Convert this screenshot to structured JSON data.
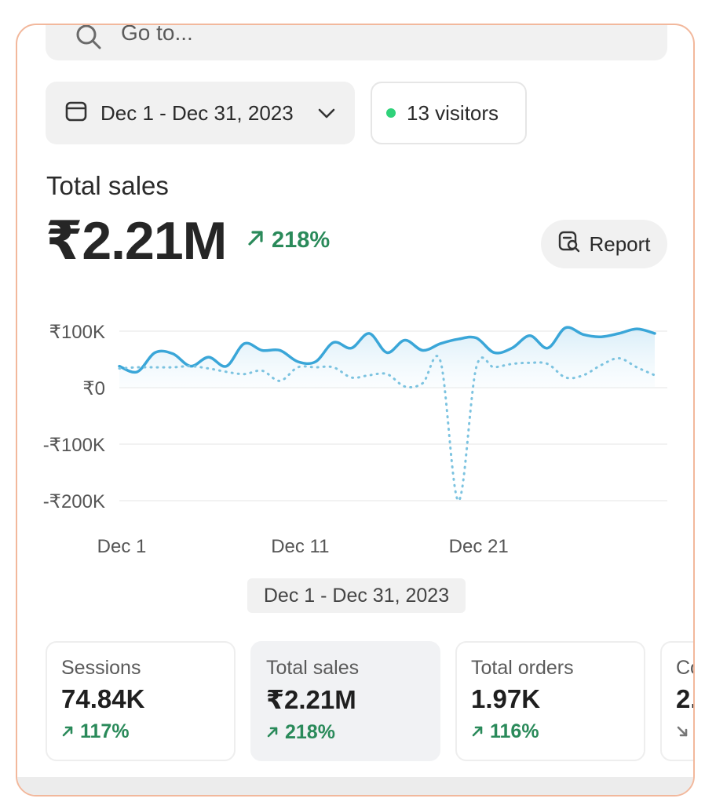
{
  "search": {
    "placeholder": "Go to..."
  },
  "date_range": {
    "label": "Dec 1 - Dec 31, 2023"
  },
  "visitors": {
    "label": "13 visitors",
    "status_color": "#2fd27a"
  },
  "total_sales": {
    "label": "Total sales",
    "value": "₹2.21M",
    "growth": "218%",
    "report_label": "Report"
  },
  "chart_data": {
    "type": "line",
    "title": "",
    "xlabel": "",
    "ylabel": "",
    "x_tick_labels": [
      "Dec 1",
      "Dec 11",
      "Dec 21"
    ],
    "y_tick_labels": [
      "₹100K",
      "₹0",
      "-₹100K",
      "-₹200K"
    ],
    "y_ticks": [
      100000,
      0,
      -100000,
      -200000
    ],
    "ylim": [
      -200000,
      100000
    ],
    "x_range": [
      1,
      31
    ],
    "grid": true,
    "series": [
      {
        "style": "solid",
        "color": "#3aa6d8",
        "x": [
          1,
          2,
          3,
          4,
          5,
          6,
          7,
          8,
          9,
          10,
          11,
          12,
          13,
          14,
          15,
          16,
          17,
          18,
          19,
          20,
          21,
          22,
          23,
          24,
          25,
          26,
          27,
          28,
          29,
          30,
          31
        ],
        "values": [
          38000,
          28000,
          62000,
          60000,
          38000,
          54000,
          38000,
          78000,
          66000,
          66000,
          46000,
          46000,
          80000,
          70000,
          96000,
          62000,
          84000,
          66000,
          78000,
          86000,
          88000,
          62000,
          70000,
          92000,
          70000,
          106000,
          94000,
          90000,
          96000,
          104000,
          96000
        ]
      },
      {
        "style": "dotted",
        "color": "#7cc3e0",
        "x": [
          1,
          2,
          3,
          4,
          5,
          6,
          7,
          8,
          9,
          10,
          11,
          12,
          13,
          14,
          15,
          16,
          17,
          18,
          19,
          20,
          21,
          22,
          23,
          24,
          25,
          26,
          27,
          28,
          29,
          30,
          31
        ],
        "values": [
          34000,
          36000,
          36000,
          36000,
          38000,
          34000,
          28000,
          24000,
          30000,
          12000,
          36000,
          36000,
          36000,
          18000,
          22000,
          24000,
          2000,
          8000,
          46000,
          -200000,
          36000,
          36000,
          42000,
          44000,
          42000,
          18000,
          22000,
          40000,
          52000,
          36000,
          22000
        ]
      }
    ]
  },
  "chart_caption": "Dec 1 - Dec 31, 2023",
  "metrics": [
    {
      "label": "Sessions",
      "value": "74.84K",
      "growth": "117%",
      "trend": "up"
    },
    {
      "label": "Total sales",
      "value": "₹2.21M",
      "growth": "218%",
      "trend": "up"
    },
    {
      "label": "Total orders",
      "value": "1.97K",
      "growth": "116%",
      "trend": "up"
    },
    {
      "label": "Co",
      "value": "2.",
      "growth": "",
      "trend": "down"
    }
  ],
  "colors": {
    "positive": "#2a8a5a",
    "accent_line": "#3aa6d8",
    "frame_border": "#f2b89c"
  }
}
